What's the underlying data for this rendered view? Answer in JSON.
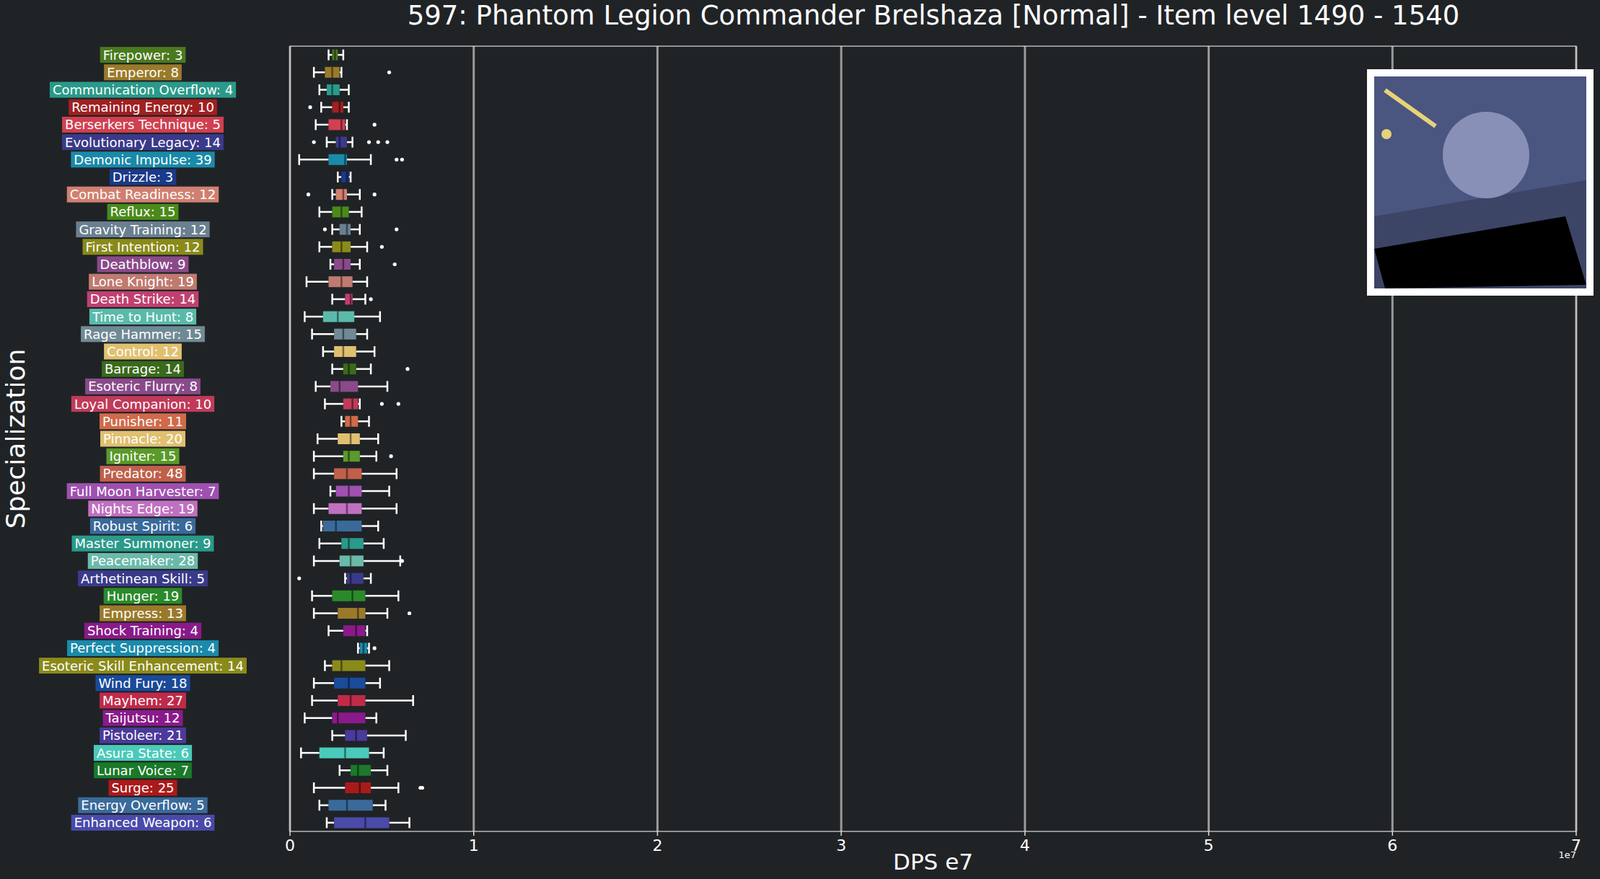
{
  "chart_data": {
    "type": "box",
    "orientation": "horizontal",
    "title": "597: Phantom Legion Commander Brelshaza [Normal] - Item level 1490 - 1540",
    "x_label": "DPS e7",
    "y_label": "Specialization",
    "x_offset_label": "1e7",
    "xlim": [
      0,
      7
    ],
    "xticks": [
      0,
      1,
      2,
      3,
      4,
      5,
      6,
      7
    ],
    "grid": true,
    "categories": [
      "Firepower: 3",
      "Emperor: 8",
      "Communication Overflow: 4",
      "Remaining Energy: 10",
      "Berserkers Technique: 5",
      "Evolutionary Legacy: 14",
      "Demonic Impulse: 39",
      "Drizzle: 3",
      "Combat Readiness: 12",
      "Reflux: 15",
      "Gravity Training: 12",
      "First Intention: 12",
      "Deathblow: 9",
      "Lone Knight: 19",
      "Death Strike: 14",
      "Time to Hunt: 8",
      "Rage Hammer: 15",
      "Control: 12",
      "Barrage: 14",
      "Esoteric Flurry: 8",
      "Loyal Companion: 10",
      "Punisher: 11",
      "Pinnacle: 20",
      "Igniter: 15",
      "Predator: 48",
      "Full Moon Harvester: 7",
      "Nights Edge: 19",
      "Robust Spirit: 6",
      "Master Summoner: 9",
      "Peacemaker: 28",
      "Arthetinean Skill: 5",
      "Hunger: 19",
      "Empress: 13",
      "Shock Training: 4",
      "Perfect Suppression: 4",
      "Esoteric Skill Enhancement: 14",
      "Wind Fury: 18",
      "Mayhem: 27",
      "Taijutsu: 12",
      "Pistoleer: 21",
      "Asura State: 6",
      "Lunar Voice: 7",
      "Surge: 25",
      "Energy Overflow: 5",
      "Enhanced Weapon: 6"
    ],
    "colors": [
      "#4a7a1e",
      "#9a7a2a",
      "#2a9a8a",
      "#a02020",
      "#d04050",
      "#3a3a8a",
      "#1a8aaa",
      "#1a3a8a",
      "#d08070",
      "#4a8a1a",
      "#6a8090",
      "#8a8a1a",
      "#8a4a8a",
      "#c07a70",
      "#c04070",
      "#5abaaa",
      "#708a95",
      "#e0c070",
      "#3a6a1a",
      "#8a4a8a",
      "#c03a5a",
      "#d06a4a",
      "#e0c070",
      "#5a9a2a",
      "#c0604a",
      "#a050b0",
      "#c070c0",
      "#3a6a9a",
      "#2a9a8a",
      "#6abaaa",
      "#3a3a8a",
      "#2a8a2a",
      "#9a7a2a",
      "#8a1a8a",
      "#1a8aaa",
      "#8a8a1a",
      "#1a4a9a",
      "#c02a4a",
      "#8a1a8a",
      "#4a3a9a",
      "#4acaba",
      "#1a7a2a",
      "#aa1a1a",
      "#3a6a9a",
      "#4a4aaa"
    ],
    "values": [
      {
        "low": 0.21,
        "q1": 0.23,
        "median": 0.245,
        "q3": 0.26,
        "high": 0.29,
        "outliers": []
      },
      {
        "low": 0.13,
        "q1": 0.19,
        "median": 0.23,
        "q3": 0.27,
        "high": 0.28,
        "outliers": [
          0.54
        ]
      },
      {
        "low": 0.16,
        "q1": 0.2,
        "median": 0.23,
        "q3": 0.27,
        "high": 0.32,
        "outliers": []
      },
      {
        "low": 0.17,
        "q1": 0.23,
        "median": 0.27,
        "q3": 0.29,
        "high": 0.32,
        "outliers": [
          0.11
        ]
      },
      {
        "low": 0.14,
        "q1": 0.21,
        "median": 0.28,
        "q3": 0.3,
        "high": 0.31,
        "outliers": [
          0.46
        ]
      },
      {
        "low": 0.2,
        "q1": 0.25,
        "median": 0.27,
        "q3": 0.31,
        "high": 0.34,
        "outliers": [
          0.13,
          0.43,
          0.48,
          0.53
        ]
      },
      {
        "low": 0.05,
        "q1": 0.21,
        "median": 0.3,
        "q3": 0.31,
        "high": 0.44,
        "outliers": [
          0.58,
          0.61
        ]
      },
      {
        "low": 0.26,
        "q1": 0.28,
        "median": 0.31,
        "q3": 0.32,
        "high": 0.33,
        "outliers": []
      },
      {
        "low": 0.23,
        "q1": 0.25,
        "median": 0.29,
        "q3": 0.31,
        "high": 0.38,
        "outliers": [
          0.1,
          0.46
        ]
      },
      {
        "low": 0.16,
        "q1": 0.23,
        "median": 0.28,
        "q3": 0.32,
        "high": 0.39,
        "outliers": []
      },
      {
        "low": 0.23,
        "q1": 0.27,
        "median": 0.31,
        "q3": 0.33,
        "high": 0.38,
        "outliers": [
          0.19,
          0.58
        ]
      },
      {
        "low": 0.16,
        "q1": 0.23,
        "median": 0.28,
        "q3": 0.33,
        "high": 0.42,
        "outliers": [
          0.5
        ]
      },
      {
        "low": 0.22,
        "q1": 0.24,
        "median": 0.29,
        "q3": 0.33,
        "high": 0.38,
        "outliers": [
          0.57
        ]
      },
      {
        "low": 0.09,
        "q1": 0.21,
        "median": 0.28,
        "q3": 0.34,
        "high": 0.42,
        "outliers": []
      },
      {
        "low": 0.23,
        "q1": 0.3,
        "median": 0.33,
        "q3": 0.34,
        "high": 0.41,
        "outliers": [
          0.44
        ]
      },
      {
        "low": 0.08,
        "q1": 0.18,
        "median": 0.26,
        "q3": 0.35,
        "high": 0.49,
        "outliers": []
      },
      {
        "low": 0.12,
        "q1": 0.24,
        "median": 0.29,
        "q3": 0.36,
        "high": 0.42,
        "outliers": []
      },
      {
        "low": 0.18,
        "q1": 0.24,
        "median": 0.29,
        "q3": 0.36,
        "high": 0.46,
        "outliers": []
      },
      {
        "low": 0.23,
        "q1": 0.29,
        "median": 0.32,
        "q3": 0.36,
        "high": 0.44,
        "outliers": [
          0.64
        ]
      },
      {
        "low": 0.14,
        "q1": 0.22,
        "median": 0.27,
        "q3": 0.37,
        "high": 0.53,
        "outliers": []
      },
      {
        "low": 0.19,
        "q1": 0.29,
        "median": 0.34,
        "q3": 0.37,
        "high": 0.38,
        "outliers": [
          0.5,
          0.59
        ]
      },
      {
        "low": 0.28,
        "q1": 0.3,
        "median": 0.33,
        "q3": 0.37,
        "high": 0.43,
        "outliers": []
      },
      {
        "low": 0.15,
        "q1": 0.26,
        "median": 0.33,
        "q3": 0.38,
        "high": 0.48,
        "outliers": []
      },
      {
        "low": 0.13,
        "q1": 0.29,
        "median": 0.32,
        "q3": 0.38,
        "high": 0.47,
        "outliers": [
          0.55
        ]
      },
      {
        "low": 0.13,
        "q1": 0.24,
        "median": 0.31,
        "q3": 0.39,
        "high": 0.58,
        "outliers": []
      },
      {
        "low": 0.22,
        "q1": 0.25,
        "median": 0.32,
        "q3": 0.39,
        "high": 0.54,
        "outliers": []
      },
      {
        "low": 0.13,
        "q1": 0.21,
        "median": 0.31,
        "q3": 0.39,
        "high": 0.58,
        "outliers": []
      },
      {
        "low": 0.17,
        "q1": 0.18,
        "median": 0.25,
        "q3": 0.39,
        "high": 0.48,
        "outliers": []
      },
      {
        "low": 0.16,
        "q1": 0.28,
        "median": 0.32,
        "q3": 0.4,
        "high": 0.51,
        "outliers": []
      },
      {
        "low": 0.13,
        "q1": 0.27,
        "median": 0.33,
        "q3": 0.4,
        "high": 0.6,
        "outliers": [
          0.61
        ]
      },
      {
        "low": 0.3,
        "q1": 0.31,
        "median": 0.33,
        "q3": 0.4,
        "high": 0.44,
        "outliers": [
          0.05
        ]
      },
      {
        "low": 0.12,
        "q1": 0.23,
        "median": 0.34,
        "q3": 0.41,
        "high": 0.59,
        "outliers": []
      },
      {
        "low": 0.13,
        "q1": 0.26,
        "median": 0.37,
        "q3": 0.41,
        "high": 0.53,
        "outliers": [
          0.65
        ]
      },
      {
        "low": 0.21,
        "q1": 0.29,
        "median": 0.36,
        "q3": 0.41,
        "high": 0.42,
        "outliers": []
      },
      {
        "low": 0.37,
        "q1": 0.38,
        "median": 0.4,
        "q3": 0.42,
        "high": 0.43,
        "outliers": [
          0.46
        ]
      },
      {
        "low": 0.19,
        "q1": 0.23,
        "median": 0.28,
        "q3": 0.41,
        "high": 0.54,
        "outliers": []
      },
      {
        "low": 0.13,
        "q1": 0.24,
        "median": 0.32,
        "q3": 0.41,
        "high": 0.49,
        "outliers": []
      },
      {
        "low": 0.12,
        "q1": 0.26,
        "median": 0.33,
        "q3": 0.41,
        "high": 0.67,
        "outliers": []
      },
      {
        "low": 0.08,
        "q1": 0.23,
        "median": 0.26,
        "q3": 0.41,
        "high": 0.47,
        "outliers": []
      },
      {
        "low": 0.23,
        "q1": 0.3,
        "median": 0.36,
        "q3": 0.42,
        "high": 0.63,
        "outliers": []
      },
      {
        "low": 0.06,
        "q1": 0.16,
        "median": 0.3,
        "q3": 0.43,
        "high": 0.51,
        "outliers": []
      },
      {
        "low": 0.27,
        "q1": 0.33,
        "median": 0.37,
        "q3": 0.44,
        "high": 0.53,
        "outliers": []
      },
      {
        "low": 0.13,
        "q1": 0.3,
        "median": 0.38,
        "q3": 0.44,
        "high": 0.59,
        "outliers": [
          0.71,
          0.72
        ]
      },
      {
        "low": 0.16,
        "q1": 0.21,
        "median": 0.31,
        "q3": 0.45,
        "high": 0.52,
        "outliers": []
      },
      {
        "low": 0.2,
        "q1": 0.24,
        "median": 0.41,
        "q3": 0.54,
        "high": 0.65,
        "outliers": []
      }
    ]
  }
}
